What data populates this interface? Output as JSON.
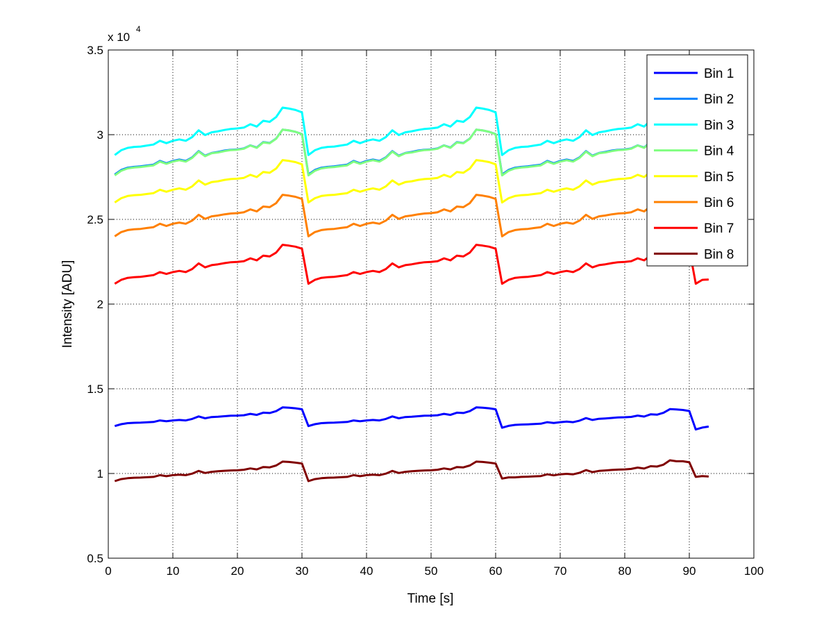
{
  "chart_data": {
    "type": "line",
    "title": "",
    "xlabel": "Time [s]",
    "ylabel": "Intensity [ADU]",
    "y_exponent_label": "x 10",
    "y_exponent_power": "4",
    "xlim": [
      0,
      100
    ],
    "ylim": [
      5000,
      35000
    ],
    "xticks": [
      0,
      10,
      20,
      30,
      40,
      50,
      60,
      70,
      80,
      90,
      100
    ],
    "xtick_labels": [
      "0",
      "10",
      "20",
      "30",
      "40",
      "50",
      "60",
      "70",
      "80",
      "90",
      "100"
    ],
    "yticks": [
      5000,
      10000,
      15000,
      20000,
      25000,
      30000,
      35000
    ],
    "ytick_labels": [
      "0.5",
      "1",
      "1.5",
      "2",
      "2.5",
      "3",
      "3.5"
    ],
    "grid": true,
    "legend_position": "top-right",
    "x": [
      1,
      2,
      3,
      4,
      5,
      6,
      7,
      8,
      9,
      10,
      11,
      12,
      13,
      14,
      15,
      16,
      17,
      18,
      19,
      20,
      21,
      22,
      23,
      24,
      25,
      26,
      27,
      28,
      29,
      30,
      31,
      32,
      33,
      34,
      35,
      36,
      37,
      38,
      39,
      40,
      41,
      42,
      43,
      44,
      45,
      46,
      47,
      48,
      49,
      50,
      51,
      52,
      53,
      54,
      55,
      56,
      57,
      58,
      59,
      60,
      61,
      62,
      63,
      64,
      65,
      66,
      67,
      68,
      69,
      70,
      71,
      72,
      73,
      74,
      75,
      76,
      77,
      78,
      79,
      80,
      81,
      82,
      83,
      84,
      85,
      86,
      87,
      88,
      89,
      90,
      91,
      92,
      93
    ],
    "series": [
      {
        "name": "Bin 1",
        "color": "#0000ff",
        "values": [
          12800,
          12910,
          12970,
          12990,
          13000,
          13020,
          13040,
          13130,
          13080,
          13130,
          13160,
          13130,
          13220,
          13370,
          13260,
          13330,
          13350,
          13380,
          13410,
          13420,
          13440,
          13520,
          13460,
          13590,
          13570,
          13680,
          13900,
          13880,
          13850,
          13790,
          12800,
          12910,
          12970,
          12990,
          13000,
          13020,
          13040,
          13130,
          13080,
          13130,
          13160,
          13130,
          13220,
          13370,
          13260,
          13330,
          13350,
          13380,
          13410,
          13420,
          13440,
          13520,
          13460,
          13590,
          13570,
          13680,
          13900,
          13880,
          13850,
          13790,
          12700,
          12810,
          12870,
          12890,
          12900,
          12920,
          12940,
          13030,
          12980,
          13030,
          13060,
          13030,
          13120,
          13270,
          13160,
          13230,
          13250,
          13280,
          13310,
          13320,
          13340,
          13420,
          13360,
          13490,
          13470,
          13580,
          13800,
          13780,
          13750,
          13690,
          12600,
          12710,
          12770
        ]
      },
      {
        "name": "Bin 2",
        "color": "#0080ff",
        "values": [
          27650,
          27920,
          28050,
          28100,
          28130,
          28180,
          28230,
          28450,
          28310,
          28450,
          28530,
          28450,
          28660,
          29030,
          28760,
          28920,
          28980,
          29060,
          29110,
          29130,
          29190,
          29370,
          29240,
          29560,
          29510,
          29770,
          30300,
          30250,
          30170,
          30040,
          27650,
          27920,
          28050,
          28100,
          28130,
          28180,
          28230,
          28450,
          28310,
          28450,
          28530,
          28450,
          28660,
          29030,
          28760,
          28920,
          28980,
          29060,
          29110,
          29130,
          29190,
          29370,
          29240,
          29560,
          29510,
          29770,
          30300,
          30250,
          30170,
          30040,
          27650,
          27920,
          28050,
          28100,
          28130,
          28180,
          28230,
          28450,
          28310,
          28450,
          28530,
          28450,
          28660,
          29030,
          28760,
          28920,
          28980,
          29060,
          29110,
          29130,
          29190,
          29370,
          29240,
          29560,
          29510,
          29770,
          30300,
          30250,
          30170,
          30040,
          27650,
          27920,
          28050
        ]
      },
      {
        "name": "Bin 3",
        "color": "#00ffff",
        "values": [
          28800,
          29080,
          29220,
          29280,
          29300,
          29360,
          29420,
          29640,
          29500,
          29640,
          29720,
          29640,
          29860,
          30260,
          29980,
          30140,
          30200,
          30280,
          30340,
          30370,
          30420,
          30620,
          30480,
          30820,
          30760,
          31040,
          31600,
          31540,
          31460,
          31320,
          28800,
          29080,
          29220,
          29280,
          29300,
          29360,
          29420,
          29640,
          29500,
          29640,
          29720,
          29640,
          29860,
          30260,
          29980,
          30140,
          30200,
          30280,
          30340,
          30370,
          30420,
          30620,
          30480,
          30820,
          30760,
          31040,
          31600,
          31540,
          31460,
          31320,
          28800,
          29080,
          29220,
          29280,
          29300,
          29360,
          29420,
          29640,
          29500,
          29640,
          29720,
          29640,
          29860,
          30260,
          29980,
          30140,
          30200,
          30280,
          30340,
          30370,
          30420,
          30620,
          30480,
          30820,
          30760,
          31040,
          31600,
          31540,
          31460,
          31320,
          28800,
          29080,
          29220
        ]
      },
      {
        "name": "Bin 4",
        "color": "#80ff80",
        "values": [
          27600,
          27870,
          28010,
          28060,
          28090,
          28140,
          28190,
          28410,
          28280,
          28410,
          28490,
          28410,
          28630,
          29000,
          28730,
          28900,
          28950,
          29030,
          29090,
          29110,
          29170,
          29360,
          29220,
          29540,
          29490,
          29760,
          30300,
          30250,
          30170,
          30030,
          27600,
          27870,
          28010,
          28060,
          28090,
          28140,
          28190,
          28410,
          28280,
          28410,
          28490,
          28410,
          28630,
          29000,
          28730,
          28900,
          28950,
          29030,
          29090,
          29110,
          29170,
          29360,
          29220,
          29540,
          29490,
          29760,
          30300,
          30250,
          30170,
          30030,
          27600,
          27870,
          28010,
          28060,
          28090,
          28140,
          28190,
          28410,
          28280,
          28410,
          28490,
          28410,
          28630,
          29000,
          28730,
          28900,
          28950,
          29030,
          29090,
          29110,
          29170,
          29360,
          29220,
          29540,
          29490,
          29760,
          30300,
          30250,
          30170,
          30030,
          27600,
          27870,
          28010
        ]
      },
      {
        "name": "Bin 5",
        "color": "#ffff00",
        "values": [
          26000,
          26250,
          26380,
          26430,
          26450,
          26500,
          26550,
          26750,
          26630,
          26750,
          26830,
          26750,
          26950,
          27300,
          27050,
          27200,
          27250,
          27330,
          27380,
          27400,
          27450,
          27630,
          27500,
          27800,
          27750,
          28000,
          28500,
          28450,
          28380,
          28250,
          26000,
          26250,
          26380,
          26430,
          26450,
          26500,
          26550,
          26750,
          26630,
          26750,
          26830,
          26750,
          26950,
          27300,
          27050,
          27200,
          27250,
          27330,
          27380,
          27400,
          27450,
          27630,
          27500,
          27800,
          27750,
          28000,
          28500,
          28450,
          28380,
          28250,
          26000,
          26250,
          26380,
          26430,
          26450,
          26500,
          26550,
          26750,
          26630,
          26750,
          26830,
          26750,
          26950,
          27300,
          27050,
          27200,
          27250,
          27330,
          27380,
          27400,
          27450,
          27630,
          27500,
          27800,
          27750,
          28000,
          28500,
          28450,
          28380,
          28250,
          26000,
          26250,
          26380
        ]
      },
      {
        "name": "Bin 6",
        "color": "#ff8000",
        "values": [
          24000,
          24250,
          24370,
          24420,
          24440,
          24490,
          24540,
          24740,
          24610,
          24740,
          24810,
          24740,
          24930,
          25270,
          25030,
          25180,
          25230,
          25300,
          25350,
          25370,
          25420,
          25590,
          25470,
          25760,
          25720,
          25960,
          26450,
          26400,
          26330,
          26210,
          24000,
          24250,
          24370,
          24420,
          24440,
          24490,
          24540,
          24740,
          24610,
          24740,
          24810,
          24740,
          24930,
          25270,
          25030,
          25180,
          25230,
          25300,
          25350,
          25370,
          25420,
          25590,
          25470,
          25760,
          25720,
          25960,
          26450,
          26400,
          26330,
          26210,
          24000,
          24250,
          24370,
          24420,
          24440,
          24490,
          24540,
          24740,
          24610,
          24740,
          24810,
          24740,
          24930,
          25270,
          25030,
          25180,
          25230,
          25300,
          25350,
          25370,
          25420,
          25590,
          25470,
          25760,
          25720,
          25960,
          26450,
          26400,
          26330,
          26210,
          24000,
          24250,
          24370
        ]
      },
      {
        "name": "Bin 7",
        "color": "#ff0000",
        "values": [
          21200,
          21430,
          21550,
          21590,
          21610,
          21660,
          21710,
          21890,
          21780,
          21890,
          21960,
          21890,
          22070,
          22400,
          22170,
          22300,
          22350,
          22420,
          22470,
          22490,
          22530,
          22700,
          22580,
          22860,
          22810,
          23040,
          23500,
          23450,
          23390,
          23270,
          21200,
          21430,
          21550,
          21590,
          21610,
          21660,
          21710,
          21890,
          21780,
          21890,
          21960,
          21890,
          22070,
          22400,
          22170,
          22300,
          22350,
          22420,
          22470,
          22490,
          22530,
          22700,
          22580,
          22860,
          22810,
          23040,
          23500,
          23450,
          23390,
          23270,
          21200,
          21430,
          21550,
          21590,
          21610,
          21660,
          21710,
          21890,
          21780,
          21890,
          21960,
          21890,
          22070,
          22400,
          22170,
          22300,
          22350,
          22420,
          22470,
          22490,
          22530,
          22700,
          22580,
          22860,
          22810,
          23040,
          23500,
          23450,
          23390,
          23270,
          21200,
          21430,
          21450
        ]
      },
      {
        "name": "Bin 8",
        "color": "#800000",
        "values": [
          9550,
          9670,
          9720,
          9750,
          9760,
          9780,
          9800,
          9900,
          9840,
          9900,
          9930,
          9900,
          9990,
          10150,
          10030,
          10100,
          10130,
          10160,
          10180,
          10190,
          10220,
          10300,
          10240,
          10380,
          10360,
          10470,
          10700,
          10680,
          10640,
          10590,
          9550,
          9670,
          9720,
          9750,
          9760,
          9780,
          9800,
          9900,
          9840,
          9900,
          9930,
          9900,
          9990,
          10150,
          10030,
          10100,
          10130,
          10160,
          10180,
          10190,
          10220,
          10300,
          10240,
          10380,
          10360,
          10470,
          10700,
          10680,
          10640,
          10590,
          9700,
          9770,
          9770,
          9800,
          9810,
          9830,
          9850,
          9950,
          9890,
          9950,
          9980,
          9950,
          10040,
          10200,
          10080,
          10150,
          10180,
          10210,
          10230,
          10240,
          10270,
          10350,
          10290,
          10430,
          10410,
          10520,
          10780,
          10720,
          10720,
          10660,
          9800,
          9850,
          9820
        ]
      }
    ]
  }
}
